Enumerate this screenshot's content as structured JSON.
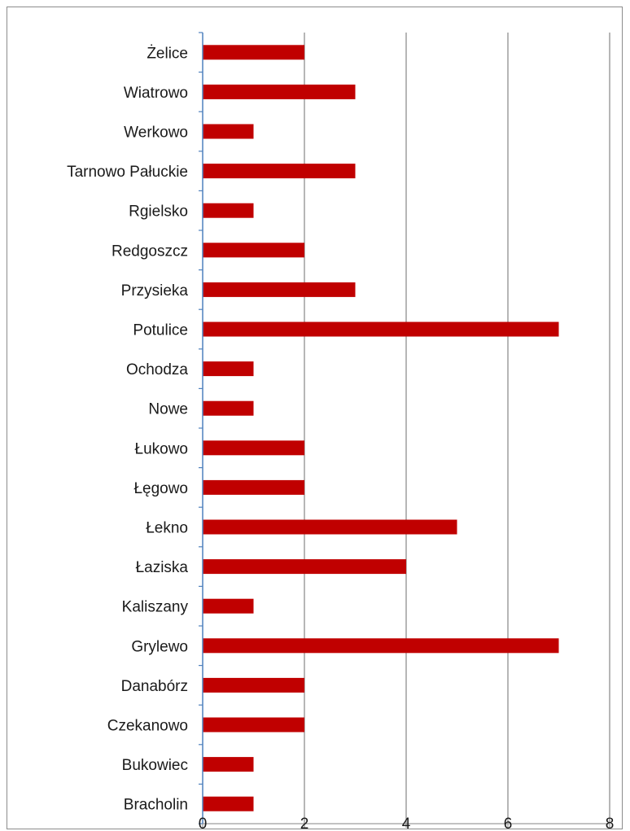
{
  "chart_data": {
    "type": "bar",
    "orientation": "horizontal",
    "categories": [
      "Żelice",
      "Wiatrowo",
      "Werkowo",
      "Tarnowo Pałuckie",
      "Rgielsko",
      "Redgoszcz",
      "Przysieka",
      "Potulice",
      "Ochodza",
      "Nowe",
      "Łukowo",
      "Łęgowo",
      "Łekno",
      "Łaziska",
      "Kaliszany",
      "Grylewo",
      "Danabórz",
      "Czekanowo",
      "Bukowiec",
      "Bracholin"
    ],
    "values": [
      2,
      3,
      1,
      3,
      1,
      2,
      3,
      7,
      1,
      1,
      2,
      2,
      5,
      4,
      1,
      7,
      2,
      2,
      1,
      1
    ],
    "xlim": [
      0,
      8
    ],
    "xticks": [
      "0",
      "2",
      "4",
      "6",
      "8"
    ],
    "title": "",
    "xlabel": "",
    "ylabel": "",
    "grid": "vertical",
    "legend": "none",
    "colors": {
      "bar": "#c00000",
      "grid": "#868686",
      "axis": "#4f81bd",
      "text": "#1a1a1a"
    }
  }
}
